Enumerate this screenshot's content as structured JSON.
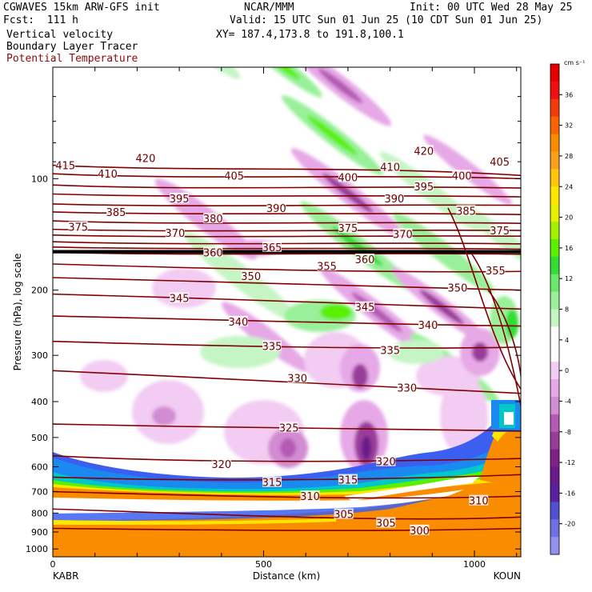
{
  "header": {
    "model": "CGWAVES 15km ARW-GFS init",
    "forecast": "Fcst:  111 h",
    "field1": "Vertical velocity",
    "field2": "Boundary Layer Tracer",
    "field3": "Potential Temperature",
    "org": "NCAR/MMM",
    "valid": "Valid: 15 UTC Sun 01 Jun 25 (10 CDT Sun 01 Jun 25)",
    "xy": "XY= 187.4,173.8 to 191.8,100.1",
    "init": "Init: 00 UTC Wed 28 May 25"
  },
  "chart_data": {
    "type": "heatmap",
    "xlabel": "Distance (km)",
    "ylabel": "Pressure (hPa), log scale",
    "xlim": [
      0,
      1110
    ],
    "ylim": [
      1050,
      50
    ],
    "x_ticks": [
      "0",
      "500",
      "1000"
    ],
    "x_end_labels": [
      "KABR",
      "KOUN"
    ],
    "y_ticks": [
      "100",
      "200",
      "300",
      "400",
      "500",
      "600",
      "700",
      "800",
      "900",
      "1000"
    ],
    "colorbar": {
      "unit": "cm s⁻¹",
      "labels": [
        "36",
        "32",
        "28",
        "24",
        "20",
        "16",
        "12",
        "8",
        "4",
        "0",
        "-4",
        "-8",
        "-12",
        "-16",
        "-20"
      ],
      "colors": [
        "#e60000",
        "#f01010",
        "#f53a0a",
        "#fa6405",
        "#fa8c00",
        "#fba018",
        "#ffc60a",
        "#ffe600",
        "#e6f000",
        "#a5f000",
        "#5af000",
        "#33dd33",
        "#6ae86a",
        "#9af09a",
        "#c5f5c5",
        "#ffffff",
        "#ffffff",
        "#f2ccf2",
        "#e6a8e6",
        "#d28cd2",
        "#b45ab4",
        "#9a3c9a",
        "#80208a",
        "#6a1a8a",
        "#5a20a0",
        "#5050d0",
        "#7070e0",
        "#9090f0"
      ]
    },
    "theta_labels": [
      {
        "v": "415",
        "x": 30,
        "p": 92
      },
      {
        "v": "410",
        "x": 130,
        "p": 97
      },
      {
        "v": "420",
        "x": 220,
        "p": 88
      },
      {
        "v": "405",
        "x": 430,
        "p": 98
      },
      {
        "v": "400",
        "x": 700,
        "p": 99
      },
      {
        "v": "410",
        "x": 800,
        "p": 93
      },
      {
        "v": "420",
        "x": 880,
        "p": 84
      },
      {
        "v": "395",
        "x": 880,
        "p": 105
      },
      {
        "v": "400",
        "x": 970,
        "p": 98
      },
      {
        "v": "405",
        "x": 1060,
        "p": 90
      },
      {
        "v": "395",
        "x": 300,
        "p": 113
      },
      {
        "v": "385",
        "x": 150,
        "p": 123
      },
      {
        "v": "390",
        "x": 530,
        "p": 120
      },
      {
        "v": "390",
        "x": 810,
        "p": 113
      },
      {
        "v": "385",
        "x": 980,
        "p": 122
      },
      {
        "v": "380",
        "x": 380,
        "p": 128
      },
      {
        "v": "375",
        "x": 60,
        "p": 135
      },
      {
        "v": "370",
        "x": 290,
        "p": 140
      },
      {
        "v": "375",
        "x": 700,
        "p": 136
      },
      {
        "v": "370",
        "x": 830,
        "p": 141
      },
      {
        "v": "375",
        "x": 1060,
        "p": 138
      },
      {
        "v": "360",
        "x": 380,
        "p": 158
      },
      {
        "v": "365",
        "x": 520,
        "p": 153
      },
      {
        "v": "360",
        "x": 740,
        "p": 165
      },
      {
        "v": "355",
        "x": 650,
        "p": 172
      },
      {
        "v": "355",
        "x": 1050,
        "p": 177
      },
      {
        "v": "350",
        "x": 470,
        "p": 183
      },
      {
        "v": "350",
        "x": 960,
        "p": 197
      },
      {
        "v": "345",
        "x": 300,
        "p": 210
      },
      {
        "v": "345",
        "x": 740,
        "p": 222
      },
      {
        "v": "340",
        "x": 440,
        "p": 243
      },
      {
        "v": "340",
        "x": 890,
        "p": 248
      },
      {
        "v": "335",
        "x": 520,
        "p": 283
      },
      {
        "v": "335",
        "x": 800,
        "p": 290
      },
      {
        "v": "330",
        "x": 580,
        "p": 345
      },
      {
        "v": "330",
        "x": 840,
        "p": 367
      },
      {
        "v": "325",
        "x": 560,
        "p": 470
      },
      {
        "v": "320",
        "x": 400,
        "p": 590
      },
      {
        "v": "320",
        "x": 790,
        "p": 580
      },
      {
        "v": "315",
        "x": 520,
        "p": 660
      },
      {
        "v": "315",
        "x": 700,
        "p": 650
      },
      {
        "v": "310",
        "x": 610,
        "p": 720
      },
      {
        "v": "310",
        "x": 1010,
        "p": 740
      },
      {
        "v": "305",
        "x": 690,
        "p": 805
      },
      {
        "v": "305",
        "x": 790,
        "p": 850
      },
      {
        "v": "300",
        "x": 870,
        "p": 890
      }
    ]
  }
}
